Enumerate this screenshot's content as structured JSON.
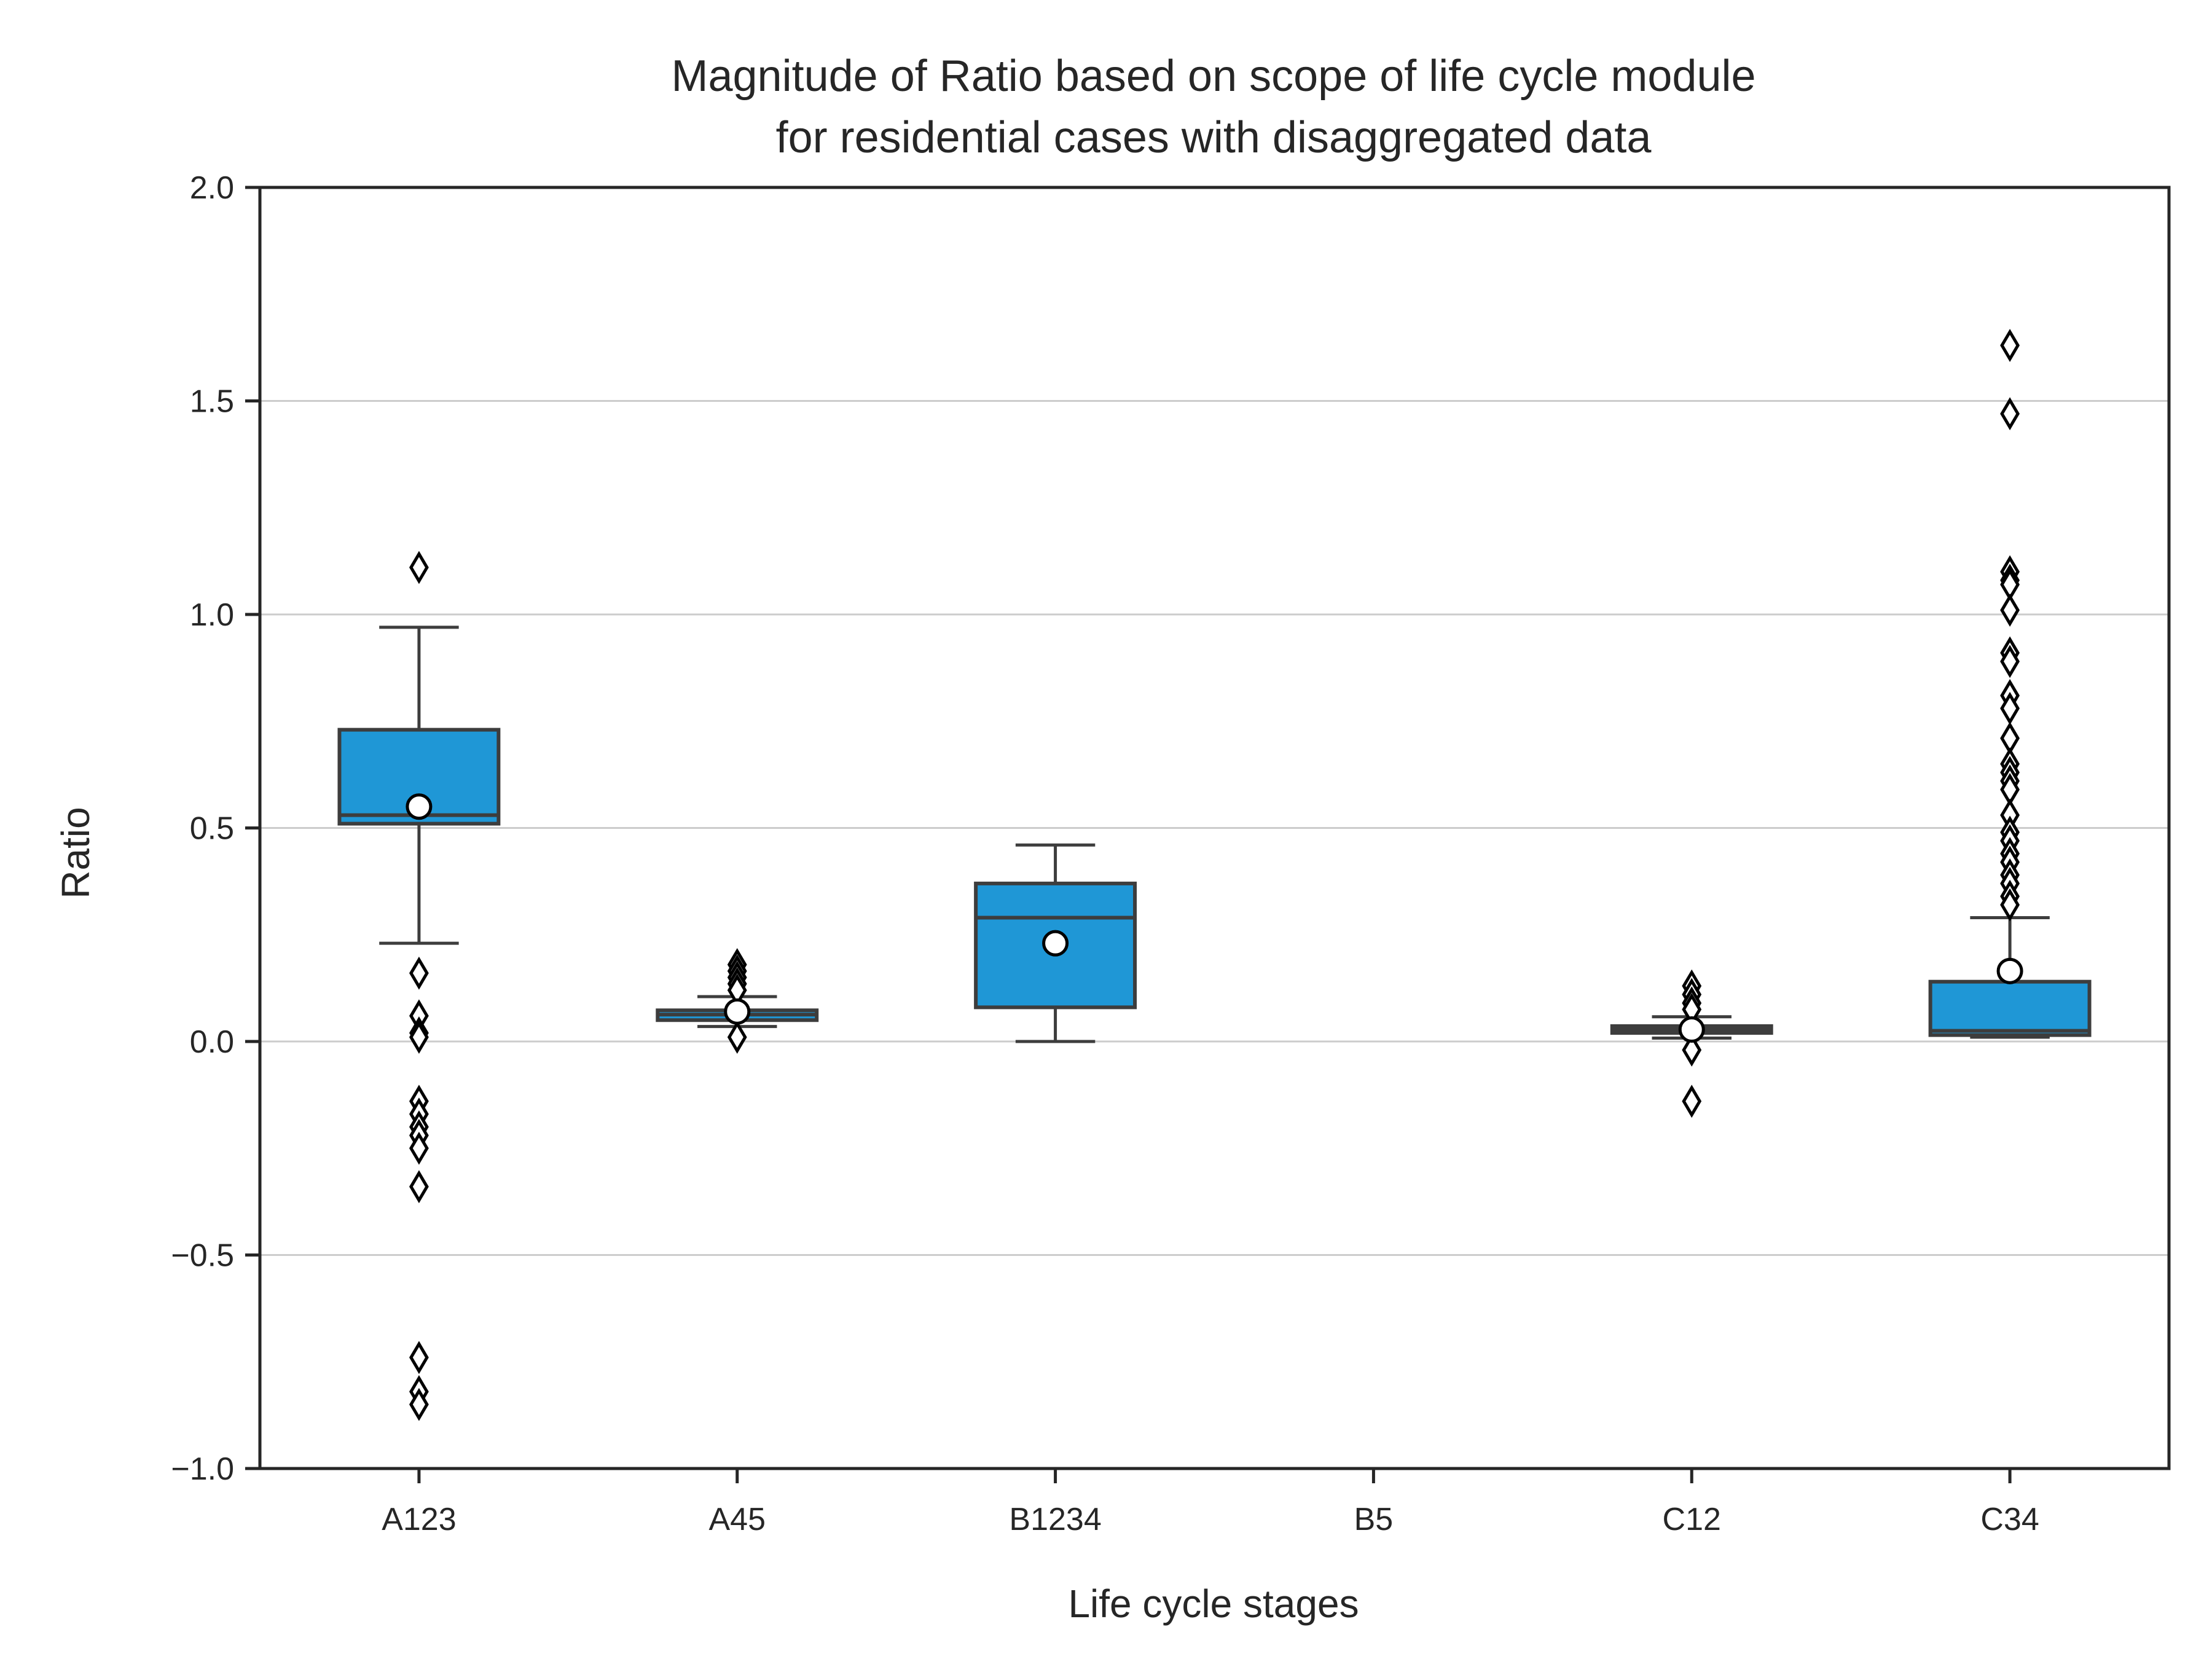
{
  "chart_data": {
    "type": "box",
    "title_lines": [
      "Magnitude of Ratio based on scope of life cycle module",
      "for residential cases with disaggregated data"
    ],
    "xlabel": "Life cycle stages",
    "ylabel": "Ratio",
    "ylim": [
      -1.0,
      2.0
    ],
    "yticks": [
      -1.0,
      -0.5,
      0.0,
      0.5,
      1.0,
      1.5,
      2.0
    ],
    "ytick_labels": [
      "−1.0",
      "−0.5",
      "0.0",
      "0.5",
      "1.0",
      "1.5",
      "2.0"
    ],
    "grid": "horizontal",
    "colors": {
      "box_fill": "#1f97d6",
      "box_edge": "#3d3d3d",
      "grid": "#cccccc",
      "axis": "#262626"
    },
    "categories": [
      "A123",
      "A45",
      "B1234",
      "B5",
      "C12",
      "C34"
    ],
    "boxes": [
      {
        "category": "A123",
        "whisker_low": 0.23,
        "q1": 0.51,
        "median": 0.53,
        "q3": 0.73,
        "whisker_high": 0.97,
        "mean": 0.55,
        "outliers": [
          1.11,
          0.16,
          0.06,
          0.02,
          0.01,
          -0.14,
          -0.17,
          -0.2,
          -0.22,
          -0.25,
          -0.34,
          -0.74,
          -0.82,
          -0.85
        ]
      },
      {
        "category": "A45",
        "whisker_low": 0.035,
        "q1": 0.05,
        "median": 0.063,
        "q3": 0.073,
        "whisker_high": 0.105,
        "mean": 0.07,
        "outliers": [
          0.18,
          0.165,
          0.15,
          0.135,
          0.12,
          0.01
        ]
      },
      {
        "category": "B1234",
        "whisker_low": 0.0,
        "q1": 0.08,
        "median": 0.29,
        "q3": 0.37,
        "whisker_high": 0.46,
        "mean": 0.23,
        "outliers": []
      },
      {
        "category": "B5",
        "empty": true
      },
      {
        "category": "C12",
        "whisker_low": 0.008,
        "q1": 0.02,
        "median": 0.028,
        "q3": 0.036,
        "whisker_high": 0.058,
        "mean": 0.028,
        "outliers": [
          0.13,
          0.11,
          0.09,
          0.075,
          -0.02,
          -0.14
        ]
      },
      {
        "category": "C34",
        "whisker_low": 0.01,
        "q1": 0.015,
        "median": 0.025,
        "q3": 0.14,
        "whisker_high": 0.29,
        "mean": 0.165,
        "outliers": [
          1.63,
          1.47,
          1.1,
          1.08,
          1.07,
          1.01,
          0.91,
          0.89,
          0.81,
          0.78,
          0.71,
          0.65,
          0.63,
          0.61,
          0.59,
          0.53,
          0.49,
          0.47,
          0.44,
          0.42,
          0.39,
          0.37,
          0.34,
          0.32
        ]
      }
    ]
  }
}
